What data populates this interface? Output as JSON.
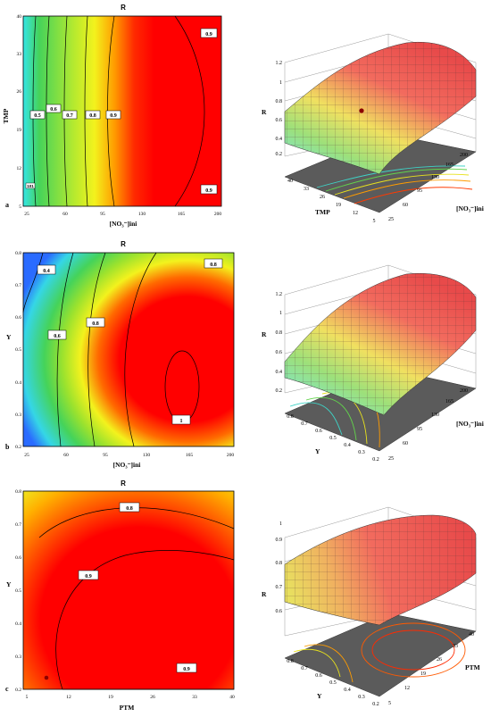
{
  "colors": {
    "low": "#2a6bff",
    "cyan": "#35e5e6",
    "green": "#45d35a",
    "yellow": "#f3f21d",
    "orange": "#ff9c00",
    "red": "#ff0000",
    "floor": "#5b5b5b",
    "line": "#000000"
  },
  "chart_data": [
    {
      "id": "a",
      "type": "contour",
      "panel_letter": "a",
      "title": "R",
      "xlabel": "[NO₃⁻]ini",
      "ylabel": "TMP",
      "xlim": [
        25,
        200
      ],
      "ylim": [
        5,
        40
      ],
      "xticks": [
        "25",
        "60",
        "95",
        "130",
        "165",
        "200"
      ],
      "yticks": [
        "5",
        "12",
        "19",
        "26",
        "33",
        "40"
      ],
      "contour_labels": [
        "0.5",
        "0.6",
        "0.7",
        "0.8",
        "0.9",
        "0.9",
        "0.9"
      ],
      "design_point_label": "101"
    },
    {
      "id": "a3d",
      "type": "surface",
      "zlabel": "R",
      "zticks": [
        "0.2",
        "0.4",
        "0.6",
        "0.8",
        "1",
        "1.2"
      ],
      "left_axis_label": "TMP",
      "left_ticks": [
        "40",
        "33",
        "26",
        "19",
        "12",
        "5"
      ],
      "right_axis_label": "[NO₃⁻]ini",
      "right_ticks": [
        "25",
        "60",
        "95",
        "130",
        "165",
        "200"
      ]
    },
    {
      "id": "b",
      "type": "contour",
      "panel_letter": "b",
      "title": "R",
      "xlabel": "[NO₃⁻]ini",
      "ylabel": "Y",
      "xlim": [
        25,
        200
      ],
      "ylim": [
        0.2,
        0.8
      ],
      "xticks": [
        "25",
        "60",
        "95",
        "130",
        "165",
        "200"
      ],
      "yticks": [
        "0.2",
        "0.3",
        "0.4",
        "0.5",
        "0.6",
        "0.7",
        "0.8"
      ],
      "contour_labels": [
        "0.4",
        "0.6",
        "0.8",
        "0.8",
        "1"
      ]
    },
    {
      "id": "b3d",
      "type": "surface",
      "zlabel": "R",
      "zticks": [
        "0.2",
        "0.4",
        "0.6",
        "0.8",
        "1",
        "1.2"
      ],
      "left_axis_label": "Y",
      "left_ticks": [
        "0.8",
        "0.7",
        "0.6",
        "0.5",
        "0.4",
        "0.3",
        "0.2"
      ],
      "right_axis_label": "[NO₃⁻]ini",
      "right_ticks": [
        "25",
        "60",
        "95",
        "130",
        "165",
        "200"
      ]
    },
    {
      "id": "c",
      "type": "contour",
      "panel_letter": "c",
      "title": "R",
      "xlabel": "PTM",
      "ylabel": "Y",
      "xlim": [
        5,
        40
      ],
      "ylim": [
        0.2,
        0.8
      ],
      "xticks": [
        "5",
        "12",
        "19",
        "26",
        "33",
        "40"
      ],
      "yticks": [
        "0.2",
        "0.3",
        "0.4",
        "0.5",
        "0.6",
        "0.7",
        "0.8"
      ],
      "contour_labels": [
        "0.8",
        "0.9",
        "0.9"
      ]
    },
    {
      "id": "c3d",
      "type": "surface",
      "zlabel": "R",
      "zticks": [
        "0.6",
        "0.7",
        "0.8",
        "0.9",
        "1"
      ],
      "left_axis_label": "Y",
      "left_ticks": [
        "0.8",
        "0.7",
        "0.6",
        "0.5",
        "0.4",
        "0.3",
        "0.2"
      ],
      "right_axis_label": "PTM",
      "right_ticks": [
        "5",
        "12",
        "19",
        "26",
        "33",
        "40"
      ]
    }
  ]
}
